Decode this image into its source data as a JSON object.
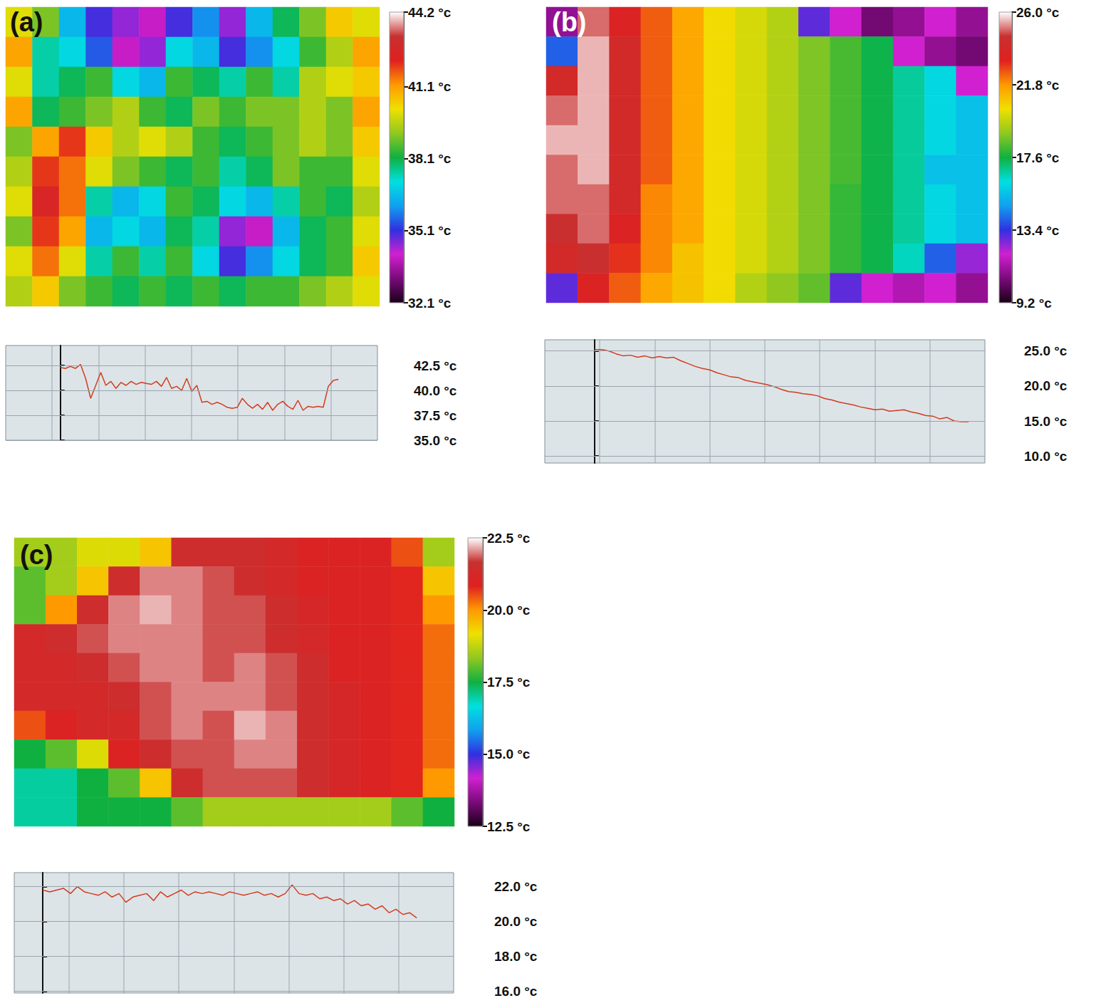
{
  "chart_data": [
    {
      "type": "heatmap",
      "title": "(a)",
      "tick_labels": false,
      "color_range": [
        32.1,
        44.2
      ],
      "color_ticks": [
        {
          "value": 44.2,
          "label": "44.2 °c"
        },
        {
          "value": 41.1,
          "label": "41.1 °c"
        },
        {
          "value": 38.1,
          "label": "38.1 °c"
        },
        {
          "value": 35.1,
          "label": "35.1 °c"
        },
        {
          "value": 32.1,
          "label": "32.1 °c"
        }
      ],
      "cells": [
        [
          40,
          39,
          36.5,
          35,
          34.5,
          34,
          35,
          36,
          34.5,
          36.5,
          38,
          39,
          40.5,
          40
        ],
        [
          41,
          37.5,
          37,
          35.5,
          34,
          34.5,
          37,
          36.5,
          35,
          36,
          37,
          38.5,
          39.5,
          41
        ],
        [
          40,
          37.5,
          38,
          38.5,
          37,
          36.5,
          38.5,
          38,
          37.5,
          38.5,
          37.5,
          39.5,
          40,
          40.5
        ],
        [
          41,
          38,
          38.5,
          39,
          39.5,
          38.5,
          38,
          39,
          38.5,
          39,
          39,
          39.5,
          39,
          41
        ],
        [
          39,
          41,
          42,
          40.5,
          39.5,
          40,
          39.5,
          38.5,
          38,
          38.5,
          39,
          39.5,
          39,
          40.5
        ],
        [
          39.5,
          42,
          41.5,
          40,
          39,
          38.5,
          38,
          38.5,
          37.5,
          38,
          39,
          38.5,
          38.5,
          40
        ],
        [
          40,
          42.5,
          41.5,
          37.5,
          36.5,
          37,
          38.5,
          38,
          37,
          36.5,
          37.5,
          38.5,
          38,
          39.5
        ],
        [
          39,
          42,
          41,
          36.5,
          37,
          36.5,
          38,
          37.5,
          34.5,
          34,
          36.5,
          38,
          38.5,
          40
        ],
        [
          40,
          41.5,
          40,
          37.5,
          38.5,
          37.5,
          38.5,
          37,
          35,
          36,
          37,
          38,
          38.5,
          40.5
        ],
        [
          39.5,
          40.5,
          39,
          38.5,
          38,
          38.5,
          38,
          38.5,
          38,
          38.5,
          38.5,
          39,
          39.5,
          40
        ]
      ]
    },
    {
      "type": "line",
      "color": "#d23c1e",
      "grid": true,
      "tick_labels": "y",
      "ylim": [
        35,
        44.5
      ],
      "yticks": [
        {
          "value": 42.5,
          "label": "42.5 °c"
        },
        {
          "value": 40,
          "label": "40.0 °c"
        },
        {
          "value": 37.5,
          "label": "37.5 °c"
        },
        {
          "value": 35,
          "label": "35.0 °c"
        }
      ],
      "values": [
        42.3,
        42.2,
        42.4,
        42.2,
        42.6,
        41.2,
        39.2,
        40.5,
        41.8,
        40.5,
        40.9,
        40.2,
        40.8,
        40.5,
        40.9,
        40.6,
        40.8,
        40.7,
        40.6,
        40.9,
        40.4,
        41.3,
        40.2,
        40.4,
        40.0,
        41.2,
        39.9,
        40.5,
        38.8,
        38.9,
        38.6,
        38.8,
        38.6,
        38.3,
        38.2,
        38.3,
        39.2,
        38.6,
        38.2,
        38.6,
        38.1,
        38.8,
        38.0,
        38.6,
        38.9,
        38.4,
        38.1,
        39.0,
        38.0,
        38.4,
        38.3,
        38.4,
        38.3,
        40.4,
        41.0,
        41.1
      ]
    },
    {
      "type": "heatmap",
      "title": "(b)",
      "tick_labels": false,
      "color_range": [
        9.2,
        26.0
      ],
      "color_ticks": [
        {
          "value": 26,
          "label": "26.0 °c"
        },
        {
          "value": 21.8,
          "label": "21.8 °c"
        },
        {
          "value": 17.6,
          "label": "17.6 °c"
        },
        {
          "value": 13.4,
          "label": "13.4 °c"
        },
        {
          "value": 9.2,
          "label": "9.2 °c"
        }
      ],
      "cells": [
        [
          11,
          25,
          23.5,
          22.5,
          21.5,
          20.5,
          20,
          19.5,
          13,
          12,
          10.5,
          11,
          12,
          11
        ],
        [
          14,
          25.5,
          24,
          22.5,
          21.5,
          20.5,
          20,
          19.5,
          18.8,
          18.2,
          17.5,
          12,
          11,
          10.5
        ],
        [
          24,
          25.5,
          24,
          22.5,
          21.5,
          20.5,
          20,
          19.5,
          18.8,
          18.2,
          17.5,
          16.8,
          16,
          12
        ],
        [
          25,
          25.5,
          24,
          22.5,
          21.5,
          20.5,
          20,
          19.5,
          18.8,
          18.2,
          17.5,
          16.8,
          16,
          15.5
        ],
        [
          25.5,
          25.5,
          24,
          22.5,
          21.5,
          20.5,
          20,
          19.5,
          18.8,
          18.2,
          17.5,
          16.8,
          16,
          15.5
        ],
        [
          25,
          25.5,
          24,
          22.5,
          21.5,
          20.5,
          20,
          19.5,
          18.8,
          18.2,
          17.5,
          16.8,
          15.5,
          15.5
        ],
        [
          25,
          25,
          24,
          22,
          21.5,
          20.5,
          20,
          19.5,
          18.8,
          18,
          17.5,
          16.8,
          16,
          15.5
        ],
        [
          24.5,
          25,
          23.5,
          22,
          21.5,
          20.5,
          20,
          19.5,
          18.8,
          18,
          17.5,
          16.8,
          16,
          15.5
        ],
        [
          24,
          24.5,
          23,
          22,
          21,
          20.5,
          20,
          19.5,
          18.8,
          18,
          17.5,
          16.5,
          14,
          12.5
        ],
        [
          13,
          23.5,
          22.5,
          21.5,
          21,
          20.5,
          19.5,
          19,
          18.5,
          13,
          12,
          11.5,
          12,
          11
        ]
      ]
    },
    {
      "type": "line",
      "color": "#d23c1e",
      "grid": true,
      "tick_labels": "y",
      "ylim": [
        9,
        26.6
      ],
      "yticks": [
        {
          "value": 25,
          "label": "25.0 °c"
        },
        {
          "value": 20,
          "label": "20.0 °c"
        },
        {
          "value": 15,
          "label": "15.0 °c"
        },
        {
          "value": 10,
          "label": "10.0 °c"
        }
      ],
      "values": [
        25.2,
        25.2,
        25.0,
        24.6,
        24.3,
        24.4,
        24.1,
        24.3,
        24.0,
        24.2,
        24.0,
        24.1,
        23.6,
        23.2,
        22.8,
        22.5,
        22.3,
        21.9,
        21.6,
        21.3,
        21.2,
        20.8,
        20.6,
        20.4,
        20.2,
        19.9,
        19.5,
        19.2,
        19.1,
        18.9,
        18.8,
        18.6,
        18.2,
        18.0,
        17.7,
        17.5,
        17.3,
        17.0,
        16.8,
        16.6,
        16.7,
        16.4,
        16.5,
        16.6,
        16.3,
        16.1,
        15.8,
        15.7,
        15.3,
        15.5,
        15.0,
        14.9,
        14.9
      ]
    },
    {
      "type": "heatmap",
      "title": "(c)",
      "tick_labels": false,
      "color_range": [
        12.5,
        22.5
      ],
      "color_ticks": [
        {
          "value": 22.5,
          "label": "22.5 °c"
        },
        {
          "value": 20,
          "label": "20.0 °c"
        },
        {
          "value": 17.5,
          "label": "17.5 °c"
        },
        {
          "value": 15,
          "label": "15.0 °c"
        },
        {
          "value": 12.5,
          "label": "12.5 °c"
        }
      ],
      "cells": [
        [
          18.5,
          18.5,
          19,
          19,
          19.5,
          21.5,
          21.5,
          21.5,
          21.3,
          21,
          21,
          21,
          20.5,
          18.5
        ],
        [
          18,
          18.5,
          19.5,
          21.5,
          22,
          22,
          21.8,
          21.5,
          21.3,
          21,
          21,
          21,
          20.8,
          19.5
        ],
        [
          18,
          20,
          21.5,
          22,
          22.2,
          22,
          21.8,
          21.8,
          21.5,
          21.2,
          21,
          21,
          20.8,
          20
        ],
        [
          21.3,
          21.5,
          21.8,
          22,
          22,
          22,
          21.8,
          21.8,
          21.5,
          21.3,
          21,
          21,
          20.8,
          20.3
        ],
        [
          21.3,
          21.3,
          21.5,
          21.8,
          22,
          22,
          21.8,
          22,
          21.8,
          21.5,
          21,
          21,
          20.8,
          20.3
        ],
        [
          21.3,
          21.3,
          21.3,
          21.5,
          21.8,
          22,
          22,
          22,
          21.8,
          21.5,
          21.2,
          21,
          20.8,
          20.3
        ],
        [
          20.5,
          21,
          21.3,
          21.3,
          21.8,
          22,
          21.8,
          22.2,
          22,
          21.5,
          21.2,
          21,
          20.8,
          20.3
        ],
        [
          17.5,
          18,
          19,
          21,
          21.5,
          21.8,
          21.8,
          22,
          22,
          21.5,
          21.2,
          21,
          20.8,
          20.3
        ],
        [
          17,
          17,
          17.5,
          18,
          19.5,
          21.5,
          21.8,
          21.8,
          21.8,
          21.5,
          21.2,
          21,
          20.8,
          20
        ],
        [
          17,
          17,
          17.5,
          17.5,
          17.5,
          18,
          18.5,
          18.5,
          18.5,
          18.5,
          18.5,
          18.5,
          18,
          17.5
        ]
      ]
    },
    {
      "type": "line",
      "color": "#d23c1e",
      "grid": true,
      "tick_labels": "y",
      "ylim": [
        15.9,
        22.8
      ],
      "yticks": [
        {
          "value": 22,
          "label": "22.0 °c"
        },
        {
          "value": 20,
          "label": "20.0 °c"
        },
        {
          "value": 18,
          "label": "18.0 °c"
        },
        {
          "value": 16,
          "label": "16.0 °c"
        }
      ],
      "values": [
        21.8,
        21.7,
        21.8,
        21.9,
        21.6,
        22.0,
        21.7,
        21.6,
        21.5,
        21.7,
        21.4,
        21.6,
        21.1,
        21.4,
        21.5,
        21.6,
        21.2,
        21.7,
        21.4,
        21.6,
        21.8,
        21.5,
        21.7,
        21.6,
        21.7,
        21.6,
        21.5,
        21.7,
        21.6,
        21.5,
        21.6,
        21.7,
        21.5,
        21.6,
        21.4,
        21.6,
        22.1,
        21.6,
        21.5,
        21.6,
        21.3,
        21.4,
        21.2,
        21.3,
        21.0,
        21.2,
        20.9,
        21.0,
        20.7,
        20.9,
        20.5,
        20.7,
        20.4,
        20.5,
        20.2
      ]
    }
  ]
}
